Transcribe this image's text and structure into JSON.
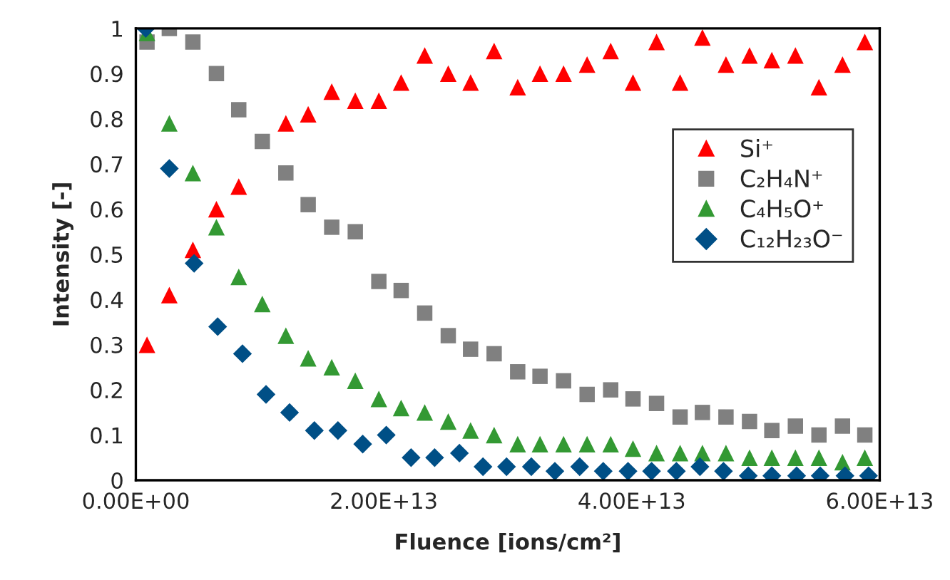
{
  "chart_data": {
    "type": "scatter",
    "xlabel": "Fluence [ions/cm²]",
    "ylabel": "Intensity [-]",
    "xlim": [
      0,
      60000000000000.0
    ],
    "xticks": [
      {
        "value": 0,
        "label": "0.00E+00"
      },
      {
        "value": 20000000000000.0,
        "label": "2.00E+13"
      },
      {
        "value": 40000000000000.0,
        "label": "4.00E+13"
      },
      {
        "value": 60000000000000.0,
        "label": "6.00E+13"
      }
    ],
    "ylim": [
      0,
      1
    ],
    "yticks": [
      0,
      0.1,
      0.2,
      0.3,
      0.4,
      0.5,
      0.6,
      0.7,
      0.8,
      0.9,
      1
    ],
    "grid": false,
    "legend": "right",
    "x": [
      900000000000.0,
      2700000000000.0,
      4600000000000.0,
      6500000000000.0,
      8300000000000.0,
      10200000000000.0,
      12100000000000.0,
      13900000000000.0,
      15800000000000.0,
      17700000000000.0,
      19600000000000.0,
      21400000000000.0,
      23300000000000.0,
      25200000000000.0,
      27000000000000.0,
      28900000000000.0,
      30800000000000.0,
      32600000000000.0,
      34500000000000.0,
      36400000000000.0,
      38300000000000.0,
      40100000000000.0,
      42000000000000.0,
      43900000000000.0,
      45700000000000.0,
      47600000000000.0,
      49500000000000.0,
      51300000000000.0,
      53200000000000.0,
      55100000000000.0,
      57000000000000.0,
      58800000000000.0
    ],
    "series": [
      {
        "name": "Si⁺",
        "color": "#ff0000",
        "marker": "triangle",
        "values": [
          0.3,
          0.41,
          0.51,
          0.6,
          0.65,
          null,
          0.79,
          0.81,
          0.86,
          0.84,
          0.84,
          0.88,
          0.94,
          0.9,
          0.88,
          0.95,
          0.87,
          0.9,
          0.9,
          0.92,
          0.95,
          0.88,
          0.97,
          0.88,
          0.98,
          0.92,
          0.94,
          0.93,
          0.94,
          0.87,
          0.92,
          0.97
        ]
      },
      {
        "name": "C₂H₄N⁺",
        "color": "#808080",
        "marker": "square",
        "values": [
          0.97,
          1.0,
          0.97,
          0.9,
          0.82,
          0.75,
          0.68,
          0.61,
          0.56,
          0.55,
          0.44,
          0.42,
          0.37,
          0.32,
          0.29,
          0.28,
          0.24,
          0.23,
          0.22,
          0.19,
          0.2,
          0.18,
          0.17,
          0.14,
          0.15,
          0.14,
          0.13,
          0.11,
          0.12,
          0.1,
          0.12,
          0.1
        ]
      },
      {
        "name": "C₄H₅O⁺",
        "color": "#339933",
        "marker": "triangle",
        "values": [
          0.99,
          0.79,
          0.68,
          0.56,
          0.45,
          0.39,
          0.32,
          0.27,
          0.25,
          0.22,
          0.18,
          0.16,
          0.15,
          0.13,
          0.11,
          0.1,
          0.08,
          0.08,
          0.08,
          0.08,
          0.08,
          0.07,
          0.06,
          0.06,
          0.06,
          0.06,
          0.05,
          0.05,
          0.05,
          0.05,
          0.04,
          0.05
        ]
      },
      {
        "name": "C₁₂H₂₃O⁻",
        "color": "#004f86",
        "marker": "diamond",
        "x": [
          800000000000.0,
          2700000000000.0,
          4700000000000.0,
          6600000000000.0,
          8600000000000.0,
          10500000000000.0,
          12400000000000.0,
          14400000000000.0,
          16300000000000.0,
          18300000000000.0,
          20200000000000.0,
          22200000000000.0,
          24100000000000.0,
          26100000000000.0,
          28000000000000.0,
          29900000000000.0,
          31900000000000.0,
          33800000000000.0,
          35800000000000.0,
          37700000000000.0,
          39700000000000.0,
          41600000000000.0,
          43600000000000.0,
          45500000000000.0,
          47400000000000.0,
          49400000000000.0,
          51300000000000.0,
          53300000000000.0,
          55200000000000.0,
          57200000000000.0,
          59100000000000.0
        ],
        "values": [
          1.0,
          0.69,
          0.48,
          0.34,
          0.28,
          0.19,
          0.15,
          0.11,
          0.11,
          0.08,
          0.1,
          0.05,
          0.05,
          0.06,
          0.03,
          0.03,
          0.03,
          0.02,
          0.03,
          0.02,
          0.02,
          0.02,
          0.02,
          0.03,
          0.02,
          0.01,
          0.01,
          0.01,
          0.01,
          0.01,
          0.01
        ]
      }
    ]
  }
}
